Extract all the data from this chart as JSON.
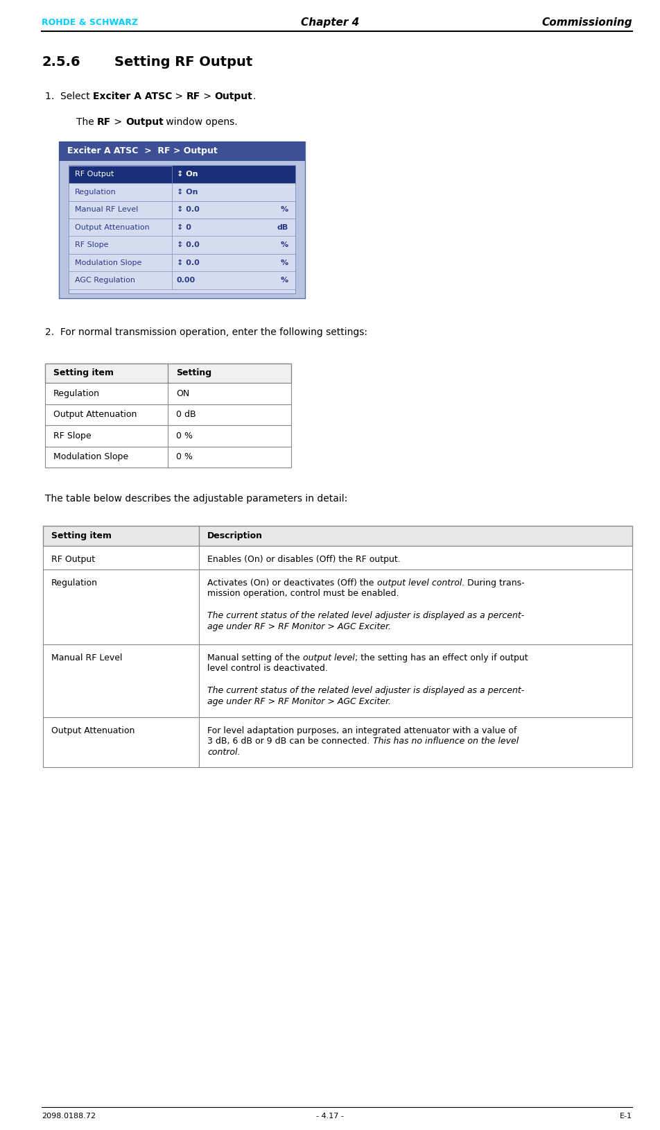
{
  "page_width": 9.52,
  "page_height": 16.29,
  "dpi": 100,
  "bg_color": "#ffffff",
  "header": {
    "logo_text": "ROHDE & SCHWARZ",
    "logo_color": "#00ccff",
    "chapter_text": "Chapter 4",
    "commissioning_text": "Commissioning"
  },
  "footer": {
    "left": "2098.0188.72",
    "center": "- 4.17 -",
    "right": "E-1"
  },
  "section_number": "2.5.6",
  "section_title": "Setting RF Output",
  "step1_parts": [
    {
      "text": "1.  Select ",
      "bold": false,
      "italic": false
    },
    {
      "text": "Exciter A ATSC",
      "bold": true,
      "italic": false
    },
    {
      "text": " > ",
      "bold": false,
      "italic": false
    },
    {
      "text": "RF",
      "bold": true,
      "italic": false
    },
    {
      "text": " > ",
      "bold": false,
      "italic": false
    },
    {
      "text": "Output",
      "bold": true,
      "italic": false
    },
    {
      "text": ".",
      "bold": false,
      "italic": false
    }
  ],
  "step1_sub_parts": [
    {
      "text": "The ",
      "bold": false,
      "italic": false
    },
    {
      "text": "RF",
      "bold": true,
      "italic": false
    },
    {
      "text": " > ",
      "bold": false,
      "italic": false
    },
    {
      "text": "Output",
      "bold": true,
      "italic": false
    },
    {
      "text": " window opens.",
      "bold": false,
      "italic": false
    }
  ],
  "ui_window": {
    "title": "Exciter A ATSC  >  RF > Output",
    "title_bg": "#3d5096",
    "title_fg": "#ffffff",
    "outer_bg": "#b8c4e0",
    "row_bg": "#d4ddf0",
    "row_border": "#8090c0",
    "highlight_bg": "#1a2f7a",
    "highlight_fg": "#ffffff",
    "rows": [
      {
        "label": "RF Output",
        "value": "↕ On",
        "unit": "",
        "highlight": true
      },
      {
        "label": "Regulation",
        "value": "↕ On",
        "unit": "",
        "highlight": false
      },
      {
        "label": "Manual RF Level",
        "value": "↕ 0.0",
        "unit": "%",
        "highlight": false
      },
      {
        "label": "Output Attenuation",
        "value": "↕ 0",
        "unit": "dB",
        "highlight": false
      },
      {
        "label": "RF Slope",
        "value": "↕ 0.0",
        "unit": "%",
        "highlight": false
      },
      {
        "label": "Modulation Slope",
        "value": "↕ 0.0",
        "unit": "%",
        "highlight": false
      },
      {
        "label": "AGC Regulation",
        "value": "0.00",
        "unit": "%",
        "highlight": false
      }
    ]
  },
  "step2_text": "2.  For normal transmission operation, enter the following settings:",
  "table1_headers": [
    "Setting item",
    "Setting"
  ],
  "table1_rows": [
    [
      "Regulation",
      "ON"
    ],
    [
      "Output Attenuation",
      "0 dB"
    ],
    [
      "RF Slope",
      "0 %"
    ],
    [
      "Modulation Slope",
      "0 %"
    ]
  ],
  "table2_intro": "The table below describes the adjustable parameters in detail:",
  "table2_headers": [
    "Setting item",
    "Description"
  ],
  "table2_rows": [
    {
      "item": "RF Output",
      "desc": [
        {
          "text": "Enables (On) or disables (Off) the RF output.",
          "italic": false
        }
      ]
    },
    {
      "item": "Regulation",
      "desc": [
        {
          "text": "Activates (On) or deactivates (Off) the ",
          "italic": false
        },
        {
          "text": "output level control",
          "italic": true
        },
        {
          "text": ". During trans-\nmission operation, control must be enabled.\n \n",
          "italic": false
        },
        {
          "text": "The current status of the related level adjuster is displayed as a percent-\nage under RF > RF Monitor > AGC Exciter.",
          "italic": true
        }
      ]
    },
    {
      "item": "Manual RF Level",
      "desc": [
        {
          "text": "Manual setting of the ",
          "italic": false
        },
        {
          "text": "output level",
          "italic": true
        },
        {
          "text": "; the setting has an effect only if output\nlevel control is deactivated.\n \n",
          "italic": false
        },
        {
          "text": "The current status of the related level adjuster is displayed as a percent-\nage under RF > RF Monitor > AGC Exciter.",
          "italic": true
        }
      ]
    },
    {
      "item": "Output Attenuation",
      "desc": [
        {
          "text": "For level adaptation purposes, an integrated attenuator with a value of\n3 dB, 6 dB or 9 dB can be connected. ",
          "italic": false
        },
        {
          "text": "This has no influence on the level\ncontrol.",
          "italic": true
        }
      ]
    }
  ]
}
